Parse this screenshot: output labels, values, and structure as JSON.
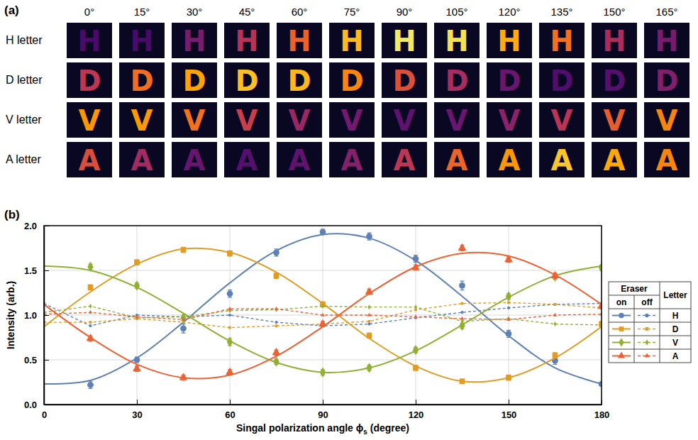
{
  "panel_labels": [
    "(a)",
    "(b)"
  ],
  "images": {
    "columns": [
      "0°",
      "15°",
      "30°",
      "45°",
      "60°",
      "75°",
      "90°",
      "105°",
      "120°",
      "135°",
      "150°",
      "165°"
    ],
    "brightness_range": [
      0,
      2
    ],
    "rows": [
      {
        "label": "H letter",
        "glyph": "H",
        "brightness": [
          0.23,
          0.22,
          0.5,
          0.85,
          1.24,
          1.7,
          1.93,
          1.88,
          1.63,
          1.33,
          0.79,
          0.49
        ]
      },
      {
        "label": "D letter",
        "glyph": "D",
        "brightness": [
          0.9,
          1.31,
          1.59,
          1.73,
          1.69,
          1.44,
          1.12,
          0.77,
          0.41,
          0.26,
          0.3,
          0.55
        ]
      },
      {
        "label": "V letter",
        "glyph": "V",
        "brightness": [
          1.53,
          1.54,
          1.33,
          0.97,
          0.7,
          0.48,
          0.36,
          0.41,
          0.61,
          0.88,
          1.21,
          1.43
        ]
      },
      {
        "label": "A letter",
        "glyph": "A",
        "brightness": [
          1.1,
          0.74,
          0.4,
          0.3,
          0.36,
          0.58,
          0.9,
          1.26,
          1.53,
          1.75,
          1.62,
          1.44
        ]
      }
    ]
  },
  "chart_data": {
    "type": "line",
    "xlabel": [
      "Singal polarization angle ϕ",
      "s",
      " (degree)"
    ],
    "ylabel": "Intensity (arb.)",
    "xlim": [
      0,
      180
    ],
    "ylim": [
      0,
      2
    ],
    "xticks": [
      0,
      30,
      60,
      90,
      120,
      150,
      180
    ],
    "yticks": [
      {
        "value": 0,
        "label": "0.0"
      },
      {
        "value": 0.5,
        "label": "0.5"
      },
      {
        "value": 1,
        "label": "1.0"
      },
      {
        "value": 1.5,
        "label": "1.5"
      },
      {
        "value": 2,
        "label": "2.0"
      }
    ],
    "grid": true,
    "legend": "right",
    "legend_table": {
      "title": "Eraser",
      "columns": [
        "on",
        "off"
      ],
      "letter_title": "Letter"
    },
    "series": [
      {
        "name": "H",
        "eraser": "on",
        "type": "scatter",
        "marker": "circle",
        "color": "#5e81b5",
        "x": [
          15,
          30,
          45,
          60,
          75,
          90,
          105,
          120,
          135,
          150,
          165,
          180
        ],
        "values": [
          0.22,
          0.5,
          0.85,
          1.24,
          1.7,
          1.93,
          1.88,
          1.63,
          1.33,
          0.79,
          0.49,
          0.23
        ],
        "errors": [
          0.04,
          0.03,
          0.05,
          0.04,
          0.04,
          0.03,
          0.04,
          0.04,
          0.05,
          0.04,
          0.04,
          0.02
        ]
      },
      {
        "name": "H",
        "eraser": "on",
        "type": "line",
        "line_style": "solid",
        "color": "#5e81b5",
        "x": [
          0,
          15,
          30,
          45,
          60,
          75,
          90,
          105,
          120,
          135,
          150,
          165,
          180
        ],
        "values": [
          0.23,
          0.27,
          0.52,
          0.92,
          1.36,
          1.72,
          1.9,
          1.86,
          1.61,
          1.21,
          0.77,
          0.41,
          0.23
        ]
      },
      {
        "name": "H",
        "eraser": "off",
        "type": "line",
        "line_style": "dashed",
        "marker": "circle",
        "color": "#5e81b5",
        "x": [
          0,
          15,
          30,
          45,
          60,
          75,
          90,
          105,
          120,
          135,
          150,
          165,
          180
        ],
        "values": [
          1.13,
          0.88,
          1.0,
          0.98,
          1.0,
          0.92,
          0.88,
          0.9,
          0.97,
          1.03,
          1.08,
          1.12,
          1.13
        ]
      },
      {
        "name": "D",
        "eraser": "on",
        "type": "scatter",
        "marker": "square",
        "color": "#e19c24",
        "x": [
          15,
          30,
          45,
          60,
          75,
          90,
          105,
          120,
          135,
          150,
          165,
          180
        ],
        "values": [
          1.31,
          1.59,
          1.73,
          1.69,
          1.44,
          1.12,
          0.77,
          0.41,
          0.26,
          0.3,
          0.55,
          0.9
        ],
        "errors": [
          0.03,
          0.03,
          0.03,
          0.03,
          0.03,
          0.03,
          0.03,
          0.03,
          0.02,
          0.03,
          0.03,
          0.03
        ]
      },
      {
        "name": "D",
        "eraser": "on",
        "type": "line",
        "line_style": "solid",
        "color": "#e19c24",
        "x": [
          0,
          15,
          30,
          45,
          60,
          75,
          90,
          105,
          120,
          135,
          150,
          165,
          180
        ],
        "values": [
          0.87,
          1.26,
          1.57,
          1.74,
          1.7,
          1.48,
          1.13,
          0.74,
          0.43,
          0.26,
          0.3,
          0.52,
          0.87
        ]
      },
      {
        "name": "D",
        "eraser": "off",
        "type": "line",
        "line_style": "dashed",
        "marker": "square",
        "color": "#e19c24",
        "x": [
          0,
          15,
          30,
          45,
          60,
          75,
          90,
          105,
          120,
          135,
          150,
          165,
          180
        ],
        "values": [
          0.92,
          0.92,
          0.96,
          0.92,
          0.86,
          0.88,
          0.9,
          0.93,
          1.06,
          1.13,
          1.14,
          1.12,
          1.08
        ]
      },
      {
        "name": "V",
        "eraser": "on",
        "type": "scatter",
        "marker": "diamond",
        "color": "#8fb032",
        "x": [
          15,
          30,
          45,
          60,
          75,
          90,
          105,
          120,
          135,
          150,
          165,
          180
        ],
        "values": [
          1.54,
          1.33,
          0.97,
          0.7,
          0.48,
          0.36,
          0.41,
          0.61,
          0.88,
          1.21,
          1.43,
          1.53
        ],
        "errors": [
          0.03,
          0.03,
          0.03,
          0.04,
          0.03,
          0.03,
          0.03,
          0.03,
          0.03,
          0.03,
          0.03,
          0.03
        ]
      },
      {
        "name": "V",
        "eraser": "on",
        "type": "line",
        "line_style": "solid",
        "color": "#8fb032",
        "x": [
          0,
          15,
          30,
          45,
          60,
          75,
          90,
          105,
          120,
          135,
          150,
          165,
          180
        ],
        "values": [
          1.55,
          1.5,
          1.31,
          1.02,
          0.71,
          0.47,
          0.36,
          0.41,
          0.6,
          0.89,
          1.2,
          1.44,
          1.55
        ]
      },
      {
        "name": "V",
        "eraser": "off",
        "type": "line",
        "line_style": "dashed",
        "marker": "diamond",
        "color": "#8fb032",
        "x": [
          0,
          15,
          30,
          45,
          60,
          75,
          90,
          105,
          120,
          135,
          150,
          165,
          180
        ],
        "values": [
          1.03,
          1.1,
          0.97,
          0.98,
          1.05,
          1.06,
          1.1,
          1.09,
          1.09,
          0.93,
          0.96,
          0.9,
          0.89
        ]
      },
      {
        "name": "A",
        "eraser": "on",
        "type": "scatter",
        "marker": "triangle",
        "color": "#eb6235",
        "x": [
          15,
          30,
          45,
          60,
          75,
          90,
          105,
          120,
          135,
          150,
          165,
          180
        ],
        "values": [
          0.74,
          0.4,
          0.3,
          0.36,
          0.58,
          0.9,
          1.26,
          1.53,
          1.75,
          1.62,
          1.44,
          1.1
        ],
        "errors": [
          0.03,
          0.03,
          0.03,
          0.03,
          0.03,
          0.03,
          0.03,
          0.03,
          0.03,
          0.03,
          0.03,
          0.03
        ]
      },
      {
        "name": "A",
        "eraser": "on",
        "type": "line",
        "line_style": "solid",
        "color": "#eb6235",
        "x": [
          0,
          15,
          30,
          45,
          60,
          75,
          90,
          105,
          120,
          135,
          150,
          165,
          180
        ],
        "values": [
          1.12,
          0.75,
          0.45,
          0.3,
          0.33,
          0.54,
          0.87,
          1.24,
          1.54,
          1.69,
          1.66,
          1.45,
          1.12
        ]
      },
      {
        "name": "A",
        "eraser": "off",
        "type": "line",
        "line_style": "dashed",
        "marker": "triangle",
        "color": "#eb6235",
        "x": [
          0,
          15,
          30,
          45,
          60,
          75,
          90,
          105,
          120,
          135,
          150,
          165,
          180
        ],
        "values": [
          1.01,
          1.03,
          0.98,
          0.95,
          1.07,
          1.07,
          1.0,
          1.0,
          0.98,
          0.96,
          0.95,
          1.0,
          1.01
        ]
      }
    ]
  }
}
